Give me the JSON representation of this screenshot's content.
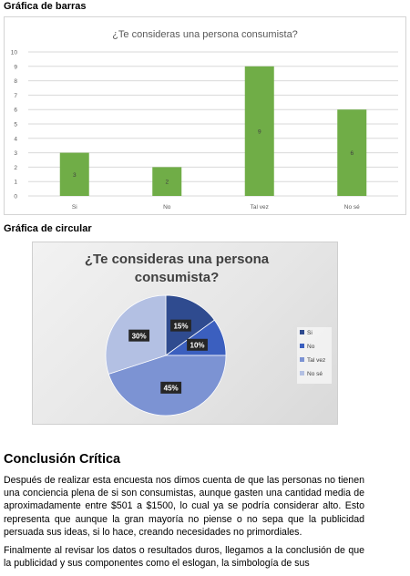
{
  "doc": {
    "bar_heading": "Gráfica de barras",
    "pie_heading": "Gráfica de circular",
    "conclusion_title": "Conclusión Crítica",
    "paragraphs": [
      "Después de realizar esta encuesta nos dimos cuenta de que las personas no tienen una conciencia plena de si son consumistas, aunque gasten una cantidad media de aproximadamente entre $501 a $1500, lo cual ya se podría considerar alto. Esto representa que aunque la gran mayoría no piense o no sepa que la publicidad persuada sus ideas, si lo hace, creando necesidades no primordiales.",
      "Finalmente al revisar los datos o resultados duros, llegamos a la conclusión de que la publicidad y sus componentes como el eslogan, la simbología de sus"
    ]
  },
  "chart_data": [
    {
      "type": "bar",
      "title": "¿Te consideras una persona consumista?",
      "categories": [
        "Si",
        "No",
        "Tal vez",
        "No sé"
      ],
      "values": [
        3,
        2,
        9,
        6
      ],
      "value_labels": [
        "3",
        "2",
        "9",
        "6"
      ],
      "yticks": [
        "0",
        "1",
        "2",
        "3",
        "4",
        "5",
        "6",
        "7",
        "8",
        "9",
        "10"
      ],
      "ylim": [
        0,
        10
      ],
      "grid": true,
      "color": "#70ad47",
      "legend": "none"
    },
    {
      "type": "pie",
      "title": "¿Te consideras una persona consumista?",
      "categories": [
        "Si",
        "No",
        "Tal vez",
        "No sé"
      ],
      "values": [
        15,
        10,
        45,
        30
      ],
      "value_labels": [
        "15%",
        "10%",
        "45%",
        "30%"
      ],
      "colors": [
        "#2f4b8f",
        "#3b5fbf",
        "#7c93d3",
        "#b3c0e3"
      ],
      "legend": "right"
    }
  ]
}
